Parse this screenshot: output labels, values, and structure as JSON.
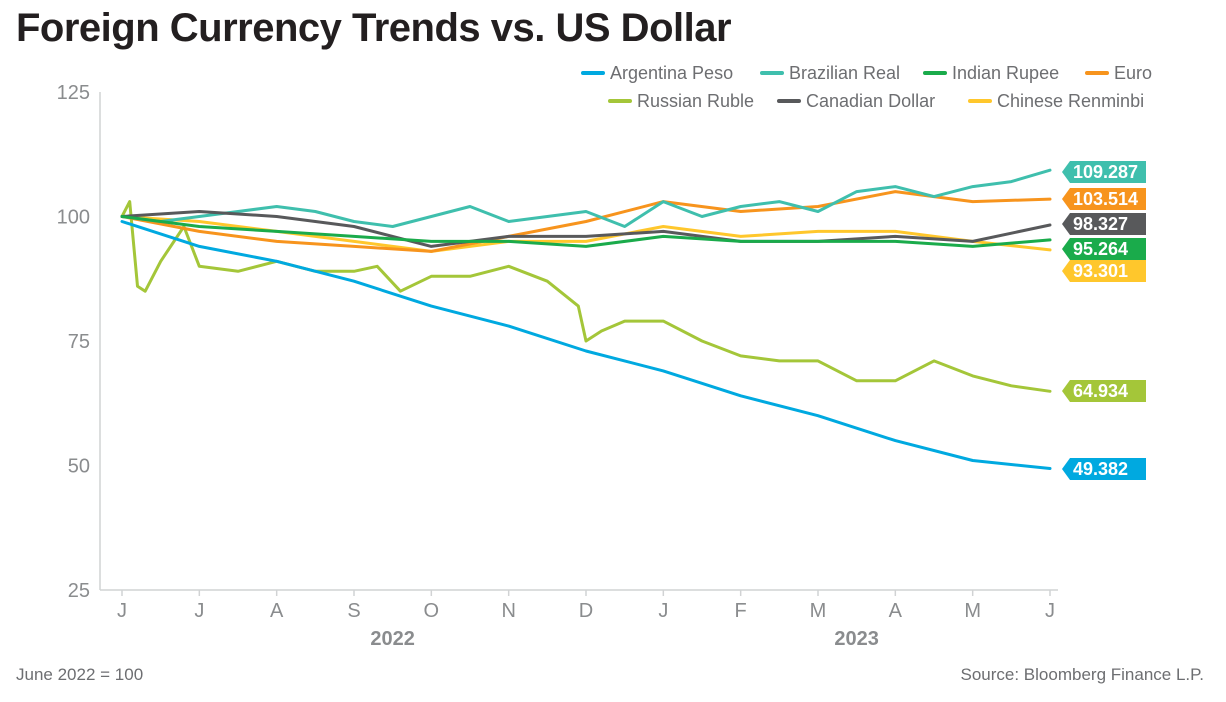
{
  "header": {
    "title": "Foreign Currency Trends vs. US Dollar"
  },
  "footer": {
    "note": "June 2022 = 100",
    "source": "Source: Bloomberg Finance L.P."
  },
  "chart_data": {
    "type": "line",
    "title": "Foreign Currency Trends vs. US Dollar",
    "xlabel": "",
    "ylabel": "",
    "ylim": [
      25,
      125
    ],
    "y_ticks": [
      125,
      100,
      75,
      50,
      25
    ],
    "x_ticks": [
      "J",
      "J",
      "A",
      "S",
      "O",
      "N",
      "D",
      "J",
      "F",
      "M",
      "A",
      "M",
      "J"
    ],
    "x_years": [
      "2022",
      "2023"
    ],
    "legend_position": "top-right",
    "grid": false,
    "series": [
      {
        "name": "Argentina Peso",
        "color": "#00a9e0",
        "end_label": "49.382",
        "x": [
          0,
          1,
          2,
          3,
          4,
          5,
          6,
          7,
          8,
          9,
          10,
          11,
          12
        ],
        "y": [
          99,
          94,
          91,
          87,
          82,
          78,
          73,
          69,
          64,
          60,
          55,
          51,
          49.4
        ]
      },
      {
        "name": "Brazilian Real",
        "color": "#3fbfad",
        "end_label": "109.287",
        "x": [
          0,
          0.5,
          1,
          1.5,
          2,
          2.5,
          3,
          3.5,
          4,
          4.5,
          5,
          5.5,
          6,
          6.5,
          7,
          7.5,
          8,
          8.5,
          9,
          9.5,
          10,
          10.5,
          11,
          11.5,
          12
        ],
        "y": [
          100,
          99,
          100,
          101,
          102,
          101,
          99,
          98,
          100,
          102,
          99,
          100,
          101,
          98,
          103,
          100,
          102,
          103,
          101,
          105,
          106,
          104,
          106,
          107,
          109.3
        ]
      },
      {
        "name": "Indian Rupee",
        "color": "#1aab4b",
        "end_label": "95.264",
        "x": [
          0,
          1,
          2,
          3,
          4,
          5,
          6,
          7,
          8,
          9,
          10,
          11,
          12
        ],
        "y": [
          100,
          98,
          97,
          96,
          95,
          95,
          94,
          96,
          95,
          95,
          95,
          94,
          95.3
        ]
      },
      {
        "name": "Euro",
        "color": "#f7941d",
        "end_label": "103.514",
        "x": [
          0,
          1,
          2,
          3,
          4,
          5,
          6,
          7,
          8,
          9,
          10,
          11,
          12
        ],
        "y": [
          100,
          97,
          95,
          94,
          93,
          96,
          99,
          103,
          101,
          102,
          105,
          103,
          103.5
        ]
      },
      {
        "name": "Russian Ruble",
        "color": "#a4c639",
        "end_label": "64.934",
        "x": [
          0,
          0.1,
          0.2,
          0.3,
          0.5,
          0.8,
          1,
          1.5,
          2,
          2.5,
          3,
          3.3,
          3.6,
          4,
          4.5,
          5,
          5.5,
          5.9,
          6,
          6.2,
          6.5,
          7,
          7.5,
          8,
          8.5,
          9,
          9.5,
          10,
          10.5,
          11,
          11.5,
          12
        ],
        "y": [
          100,
          103,
          86,
          85,
          91,
          98,
          90,
          89,
          91,
          89,
          89,
          90,
          85,
          88,
          88,
          90,
          87,
          82,
          75,
          77,
          79,
          79,
          75,
          72,
          71,
          71,
          67,
          67,
          71,
          68,
          66,
          64.9
        ]
      },
      {
        "name": "Canadian Dollar",
        "color": "#58595b",
        "end_label": "98.327",
        "x": [
          0,
          1,
          2,
          3,
          4,
          5,
          6,
          7,
          8,
          9,
          10,
          11,
          12
        ],
        "y": [
          100,
          101,
          100,
          98,
          94,
          96,
          96,
          97,
          95,
          95,
          96,
          95,
          98.3
        ]
      },
      {
        "name": "Chinese Renminbi",
        "color": "#ffc72c",
        "end_label": "93.301",
        "x": [
          0,
          1,
          2,
          3,
          4,
          5,
          6,
          7,
          8,
          9,
          10,
          11,
          12
        ],
        "y": [
          100,
          99,
          97,
          95,
          93,
          95,
          95,
          98,
          96,
          97,
          97,
          95,
          93.3
        ]
      }
    ]
  }
}
